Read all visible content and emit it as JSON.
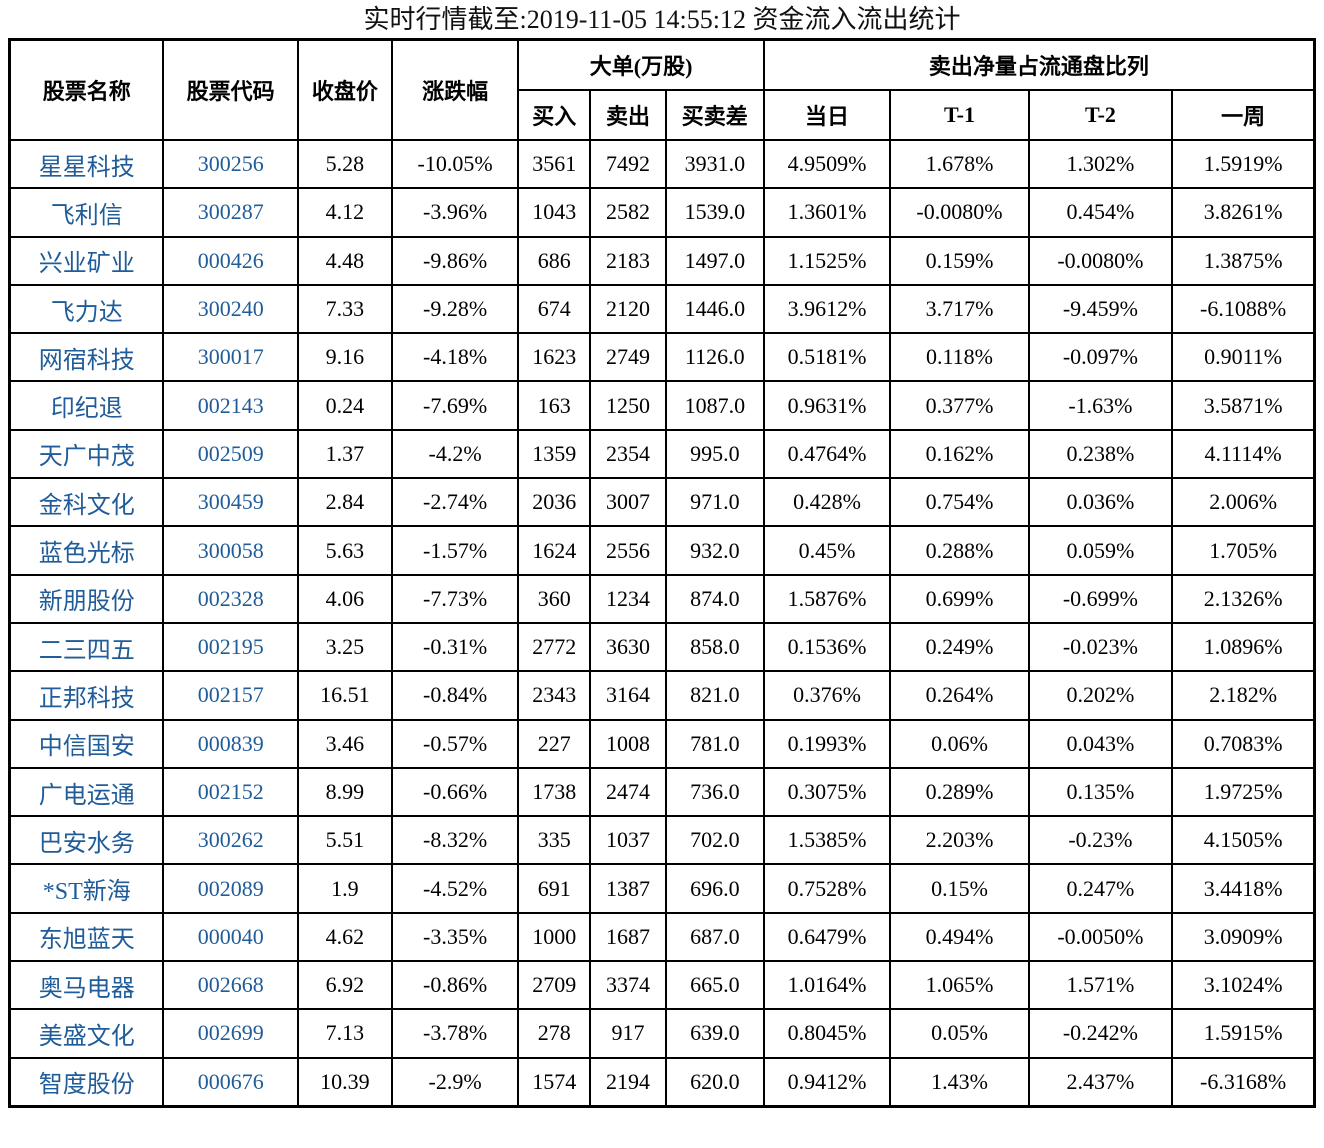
{
  "title": "实时行情截至:2019-11-05 14:55:12 资金流入流出统计",
  "colors": {
    "stock_link_blue": "#1f5c99",
    "table_border": "#000000",
    "text": "#000000",
    "background": "#ffffff"
  },
  "chart_data": {
    "type": "table",
    "title": "实时行情截至:2019-11-05 14:55:12 资金流入流出统计",
    "column_groups": [
      {
        "label": "大单(万股)",
        "span": 3
      },
      {
        "label": "卖出净量占流通盘比列",
        "span": 4
      }
    ],
    "columns": [
      "股票名称",
      "股票代码",
      "收盘价",
      "涨跌幅",
      "买入",
      "卖出",
      "买卖差",
      "当日",
      "T-1",
      "T-2",
      "一周"
    ],
    "rows": [
      [
        "星星科技",
        "300256",
        "5.28",
        "-10.05%",
        "3561",
        "7492",
        "3931.0",
        "4.9509%",
        "1.678%",
        "1.302%",
        "1.5919%"
      ],
      [
        "飞利信",
        "300287",
        "4.12",
        "-3.96%",
        "1043",
        "2582",
        "1539.0",
        "1.3601%",
        "-0.0080%",
        "0.454%",
        "3.8261%"
      ],
      [
        "兴业矿业",
        "000426",
        "4.48",
        "-9.86%",
        "686",
        "2183",
        "1497.0",
        "1.1525%",
        "0.159%",
        "-0.0080%",
        "1.3875%"
      ],
      [
        "飞力达",
        "300240",
        "7.33",
        "-9.28%",
        "674",
        "2120",
        "1446.0",
        "3.9612%",
        "3.717%",
        "-9.459%",
        "-6.1088%"
      ],
      [
        "网宿科技",
        "300017",
        "9.16",
        "-4.18%",
        "1623",
        "2749",
        "1126.0",
        "0.5181%",
        "0.118%",
        "-0.097%",
        "0.9011%"
      ],
      [
        "印纪退",
        "002143",
        "0.24",
        "-7.69%",
        "163",
        "1250",
        "1087.0",
        "0.9631%",
        "0.377%",
        "-1.63%",
        "3.5871%"
      ],
      [
        "天广中茂",
        "002509",
        "1.37",
        "-4.2%",
        "1359",
        "2354",
        "995.0",
        "0.4764%",
        "0.162%",
        "0.238%",
        "4.1114%"
      ],
      [
        "金科文化",
        "300459",
        "2.84",
        "-2.74%",
        "2036",
        "3007",
        "971.0",
        "0.428%",
        "0.754%",
        "0.036%",
        "2.006%"
      ],
      [
        "蓝色光标",
        "300058",
        "5.63",
        "-1.57%",
        "1624",
        "2556",
        "932.0",
        "0.45%",
        "0.288%",
        "0.059%",
        "1.705%"
      ],
      [
        "新朋股份",
        "002328",
        "4.06",
        "-7.73%",
        "360",
        "1234",
        "874.0",
        "1.5876%",
        "0.699%",
        "-0.699%",
        "2.1326%"
      ],
      [
        "二三四五",
        "002195",
        "3.25",
        "-0.31%",
        "2772",
        "3630",
        "858.0",
        "0.1536%",
        "0.249%",
        "-0.023%",
        "1.0896%"
      ],
      [
        "正邦科技",
        "002157",
        "16.51",
        "-0.84%",
        "2343",
        "3164",
        "821.0",
        "0.376%",
        "0.264%",
        "0.202%",
        "2.182%"
      ],
      [
        "中信国安",
        "000839",
        "3.46",
        "-0.57%",
        "227",
        "1008",
        "781.0",
        "0.1993%",
        "0.06%",
        "0.043%",
        "0.7083%"
      ],
      [
        "广电运通",
        "002152",
        "8.99",
        "-0.66%",
        "1738",
        "2474",
        "736.0",
        "0.3075%",
        "0.289%",
        "0.135%",
        "1.9725%"
      ],
      [
        "巴安水务",
        "300262",
        "5.51",
        "-8.32%",
        "335",
        "1037",
        "702.0",
        "1.5385%",
        "2.203%",
        "-0.23%",
        "4.1505%"
      ],
      [
        "*ST新海",
        "002089",
        "1.9",
        "-4.52%",
        "691",
        "1387",
        "696.0",
        "0.7528%",
        "0.15%",
        "0.247%",
        "3.4418%"
      ],
      [
        "东旭蓝天",
        "000040",
        "4.62",
        "-3.35%",
        "1000",
        "1687",
        "687.0",
        "0.6479%",
        "0.494%",
        "-0.0050%",
        "3.0909%"
      ],
      [
        "奥马电器",
        "002668",
        "6.92",
        "-0.86%",
        "2709",
        "3374",
        "665.0",
        "1.0164%",
        "1.065%",
        "1.571%",
        "3.1024%"
      ],
      [
        "美盛文化",
        "002699",
        "7.13",
        "-3.78%",
        "278",
        "917",
        "639.0",
        "0.8045%",
        "0.05%",
        "-0.242%",
        "1.5915%"
      ],
      [
        "智度股份",
        "000676",
        "10.39",
        "-2.9%",
        "1574",
        "2194",
        "620.0",
        "0.9412%",
        "1.43%",
        "2.437%",
        "-6.3168%"
      ]
    ]
  }
}
